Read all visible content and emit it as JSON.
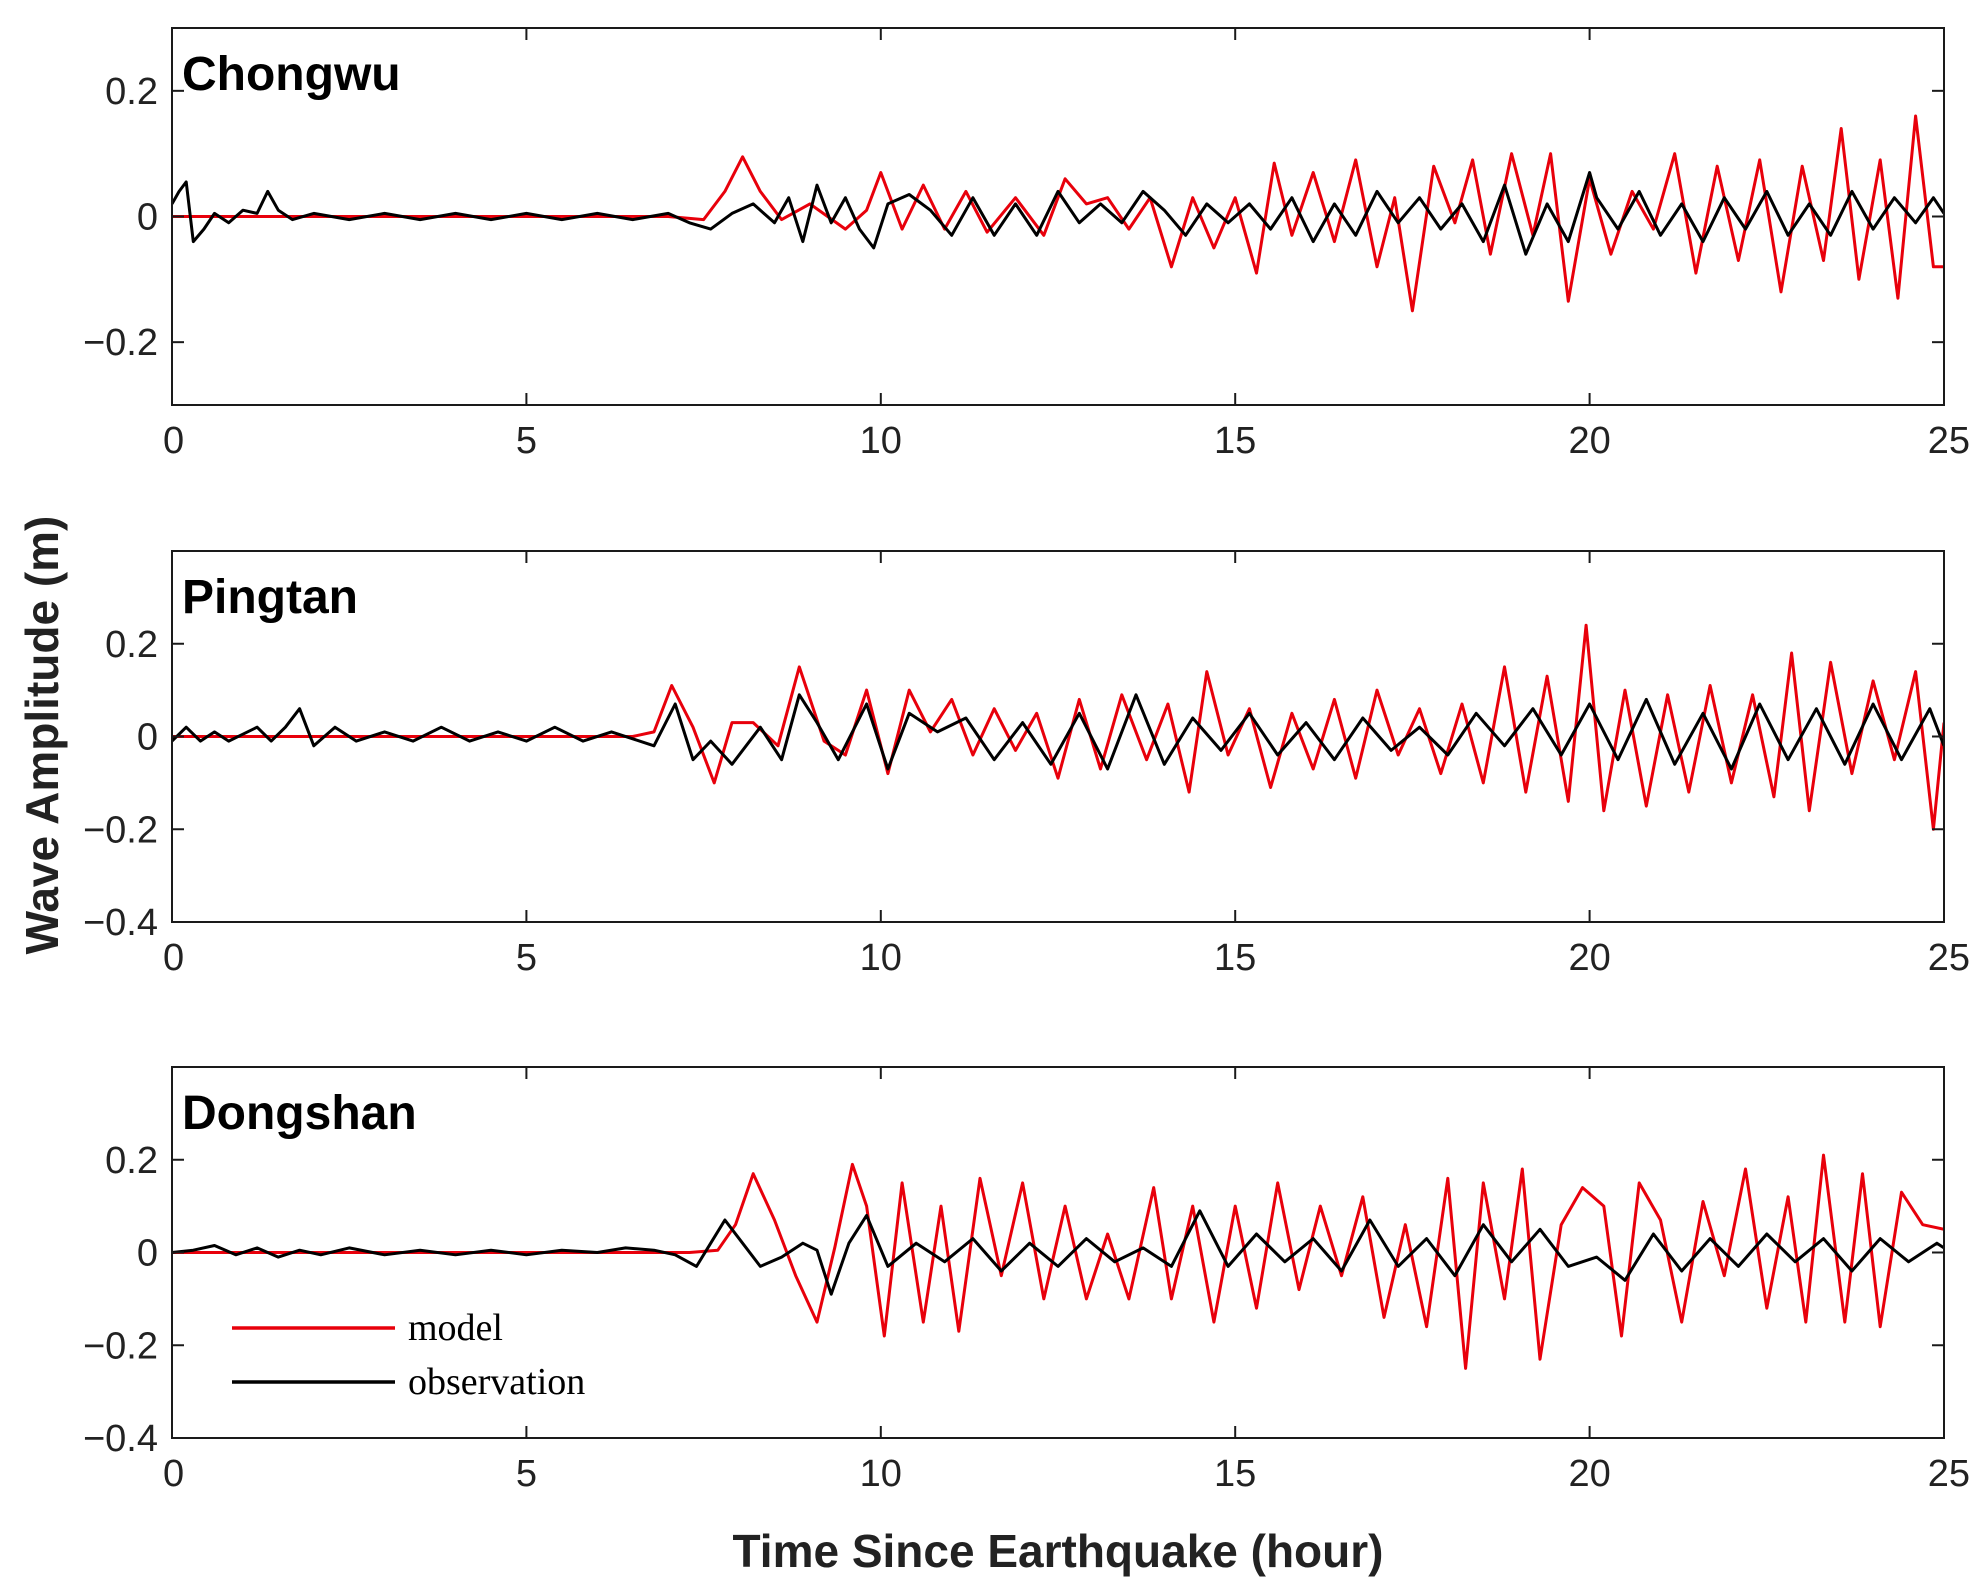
{
  "figure": {
    "xlabel": "Time Since Earthquake (hour)",
    "ylabel": "Wave Amplitude (m)",
    "legend": [
      {
        "label": "model",
        "color": "#e8000b"
      },
      {
        "label": "observation",
        "color": "#000000"
      }
    ]
  },
  "chart_data": [
    {
      "type": "line",
      "title": "Chongwu",
      "xlim": [
        0,
        25
      ],
      "ylim": [
        -0.3,
        0.3
      ],
      "xticks": [
        0,
        5,
        10,
        15,
        20,
        25
      ],
      "yticks": [
        -0.2,
        0,
        0.2
      ],
      "ytick_labels": [
        "−0.2",
        "0",
        "0.2"
      ],
      "series": [
        {
          "name": "model",
          "color": "#e8000b",
          "x": [
            0,
            7,
            7.5,
            7.8,
            8.05,
            8.3,
            8.6,
            9,
            9.5,
            9.8,
            10,
            10.3,
            10.6,
            10.9,
            11.2,
            11.5,
            11.9,
            12.3,
            12.6,
            12.9,
            13.2,
            13.5,
            13.8,
            14.1,
            14.4,
            14.7,
            15,
            15.3,
            15.55,
            15.8,
            16.1,
            16.4,
            16.7,
            17,
            17.25,
            17.5,
            17.8,
            18.1,
            18.35,
            18.6,
            18.9,
            19.2,
            19.45,
            19.7,
            20,
            20.3,
            20.6,
            20.9,
            21.2,
            21.5,
            21.8,
            22.1,
            22.4,
            22.7,
            23,
            23.3,
            23.55,
            23.8,
            24.1,
            24.35,
            24.6,
            24.85,
            25
          ],
          "y": [
            0,
            0,
            -0.005,
            0.04,
            0.095,
            0.04,
            -0.005,
            0.02,
            -0.02,
            0.01,
            0.07,
            -0.02,
            0.05,
            -0.02,
            0.04,
            -0.025,
            0.03,
            -0.03,
            0.06,
            0.02,
            0.03,
            -0.02,
            0.03,
            -0.08,
            0.03,
            -0.05,
            0.03,
            -0.09,
            0.085,
            -0.03,
            0.07,
            -0.04,
            0.09,
            -0.08,
            0.03,
            -0.15,
            0.08,
            -0.01,
            0.09,
            -0.06,
            0.1,
            -0.03,
            0.1,
            -0.135,
            0.06,
            -0.06,
            0.04,
            -0.02,
            0.1,
            -0.09,
            0.08,
            -0.07,
            0.09,
            -0.12,
            0.08,
            -0.07,
            0.14,
            -0.1,
            0.09,
            -0.13,
            0.16,
            -0.08,
            -0.08
          ]
        },
        {
          "name": "observation",
          "color": "#000000",
          "x": [
            0,
            0.1,
            0.2,
            0.3,
            0.45,
            0.6,
            0.8,
            1,
            1.2,
            1.35,
            1.5,
            1.7,
            2,
            2.5,
            3,
            3.5,
            4,
            4.5,
            5,
            5.5,
            6,
            6.5,
            7,
            7.3,
            7.6,
            7.9,
            8.2,
            8.5,
            8.7,
            8.9,
            9.1,
            9.3,
            9.5,
            9.7,
            9.9,
            10.1,
            10.4,
            10.7,
            11,
            11.3,
            11.6,
            11.9,
            12.2,
            12.5,
            12.8,
            13.1,
            13.4,
            13.7,
            14,
            14.3,
            14.6,
            14.9,
            15.2,
            15.5,
            15.8,
            16.1,
            16.4,
            16.7,
            17,
            17.3,
            17.6,
            17.9,
            18.2,
            18.5,
            18.8,
            19.1,
            19.4,
            19.7,
            20,
            20.1,
            20.4,
            20.7,
            21,
            21.3,
            21.6,
            21.9,
            22.2,
            22.5,
            22.8,
            23.1,
            23.4,
            23.7,
            24,
            24.3,
            24.6,
            24.85,
            25
          ],
          "y": [
            0.02,
            0.04,
            0.055,
            -0.04,
            -0.02,
            0.005,
            -0.01,
            0.01,
            0.005,
            0.04,
            0.01,
            -0.005,
            0.005,
            -0.005,
            0.005,
            -0.005,
            0.005,
            -0.005,
            0.005,
            -0.005,
            0.005,
            -0.005,
            0.005,
            -0.01,
            -0.02,
            0.005,
            0.02,
            -0.01,
            0.03,
            -0.04,
            0.05,
            -0.01,
            0.03,
            -0.02,
            -0.05,
            0.02,
            0.035,
            0.01,
            -0.03,
            0.03,
            -0.03,
            0.02,
            -0.03,
            0.04,
            -0.01,
            0.02,
            -0.01,
            0.04,
            0.01,
            -0.03,
            0.02,
            -0.01,
            0.02,
            -0.02,
            0.03,
            -0.04,
            0.02,
            -0.03,
            0.04,
            -0.01,
            0.03,
            -0.02,
            0.02,
            -0.04,
            0.05,
            -0.06,
            0.02,
            -0.04,
            0.07,
            0.03,
            -0.02,
            0.04,
            -0.03,
            0.02,
            -0.04,
            0.03,
            -0.02,
            0.04,
            -0.03,
            0.02,
            -0.03,
            0.04,
            -0.02,
            0.03,
            -0.01,
            0.03,
            0.005
          ]
        }
      ]
    },
    {
      "type": "line",
      "title": "Pingtan",
      "xlim": [
        0,
        25
      ],
      "ylim": [
        -0.4,
        0.4
      ],
      "xticks": [
        0,
        5,
        10,
        15,
        20,
        25
      ],
      "yticks": [
        -0.4,
        -0.2,
        0,
        0.2
      ],
      "ytick_labels": [
        "−0.4",
        "−0.2",
        "0",
        "0.2"
      ],
      "series": [
        {
          "name": "model",
          "color": "#e8000b",
          "x": [
            0,
            6.5,
            6.8,
            7.05,
            7.35,
            7.65,
            7.9,
            8.2,
            8.55,
            8.85,
            9.2,
            9.5,
            9.8,
            10.1,
            10.4,
            10.7,
            11,
            11.3,
            11.6,
            11.9,
            12.2,
            12.5,
            12.8,
            13.1,
            13.4,
            13.75,
            14.05,
            14.35,
            14.6,
            14.9,
            15.2,
            15.5,
            15.8,
            16.1,
            16.4,
            16.7,
            17,
            17.3,
            17.6,
            17.9,
            18.2,
            18.5,
            18.8,
            19.1,
            19.4,
            19.7,
            19.95,
            20.2,
            20.5,
            20.8,
            21.1,
            21.4,
            21.7,
            22,
            22.3,
            22.6,
            22.85,
            23.1,
            23.4,
            23.7,
            24,
            24.3,
            24.6,
            24.85,
            25
          ],
          "y": [
            0,
            0,
            0.01,
            0.11,
            0.02,
            -0.1,
            0.03,
            0.03,
            -0.02,
            0.15,
            -0.01,
            -0.04,
            0.1,
            -0.08,
            0.1,
            0.01,
            0.08,
            -0.04,
            0.06,
            -0.03,
            0.05,
            -0.09,
            0.08,
            -0.07,
            0.09,
            -0.05,
            0.07,
            -0.12,
            0.14,
            -0.04,
            0.06,
            -0.11,
            0.05,
            -0.07,
            0.08,
            -0.09,
            0.1,
            -0.04,
            0.06,
            -0.08,
            0.07,
            -0.1,
            0.15,
            -0.12,
            0.13,
            -0.14,
            0.24,
            -0.16,
            0.1,
            -0.15,
            0.09,
            -0.12,
            0.11,
            -0.1,
            0.09,
            -0.13,
            0.18,
            -0.16,
            0.16,
            -0.08,
            0.12,
            -0.05,
            0.14,
            -0.2,
            0.03
          ]
        },
        {
          "name": "observation",
          "color": "#000000",
          "x": [
            0,
            0.2,
            0.4,
            0.6,
            0.8,
            1,
            1.2,
            1.4,
            1.6,
            1.8,
            2,
            2.3,
            2.6,
            3,
            3.4,
            3.8,
            4.2,
            4.6,
            5,
            5.4,
            5.8,
            6.2,
            6.5,
            6.8,
            7.1,
            7.35,
            7.6,
            7.9,
            8.3,
            8.6,
            8.85,
            9.1,
            9.4,
            9.8,
            10.1,
            10.4,
            10.8,
            11.2,
            11.6,
            12,
            12.4,
            12.8,
            13.2,
            13.6,
            14,
            14.4,
            14.8,
            15.2,
            15.6,
            16,
            16.4,
            16.8,
            17.2,
            17.6,
            18,
            18.4,
            18.8,
            19.2,
            19.6,
            20,
            20.4,
            20.8,
            21.2,
            21.6,
            22,
            22.4,
            22.8,
            23.2,
            23.6,
            24,
            24.4,
            24.8,
            25
          ],
          "y": [
            -0.01,
            0.02,
            -0.01,
            0.01,
            -0.01,
            0.005,
            0.02,
            -0.01,
            0.02,
            0.06,
            -0.02,
            0.02,
            -0.01,
            0.01,
            -0.01,
            0.02,
            -0.01,
            0.01,
            -0.01,
            0.02,
            -0.01,
            0.01,
            -0.005,
            -0.02,
            0.07,
            -0.05,
            -0.01,
            -0.06,
            0.02,
            -0.05,
            0.09,
            0.03,
            -0.05,
            0.07,
            -0.07,
            0.05,
            0.01,
            0.04,
            -0.05,
            0.03,
            -0.06,
            0.05,
            -0.07,
            0.09,
            -0.06,
            0.04,
            -0.03,
            0.05,
            -0.04,
            0.03,
            -0.05,
            0.04,
            -0.03,
            0.02,
            -0.04,
            0.05,
            -0.02,
            0.06,
            -0.04,
            0.07,
            -0.05,
            0.08,
            -0.06,
            0.05,
            -0.07,
            0.07,
            -0.05,
            0.06,
            -0.06,
            0.07,
            -0.05,
            0.06,
            -0.02
          ]
        }
      ]
    },
    {
      "type": "line",
      "title": "Dongshan",
      "xlim": [
        0,
        25
      ],
      "ylim": [
        -0.4,
        0.4
      ],
      "xticks": [
        0,
        5,
        10,
        15,
        20,
        25
      ],
      "yticks": [
        -0.4,
        -0.2,
        0,
        0.2
      ],
      "ytick_labels": [
        "−0.4",
        "−0.2",
        "0",
        "0.2"
      ],
      "series": [
        {
          "name": "model",
          "color": "#e8000b",
          "x": [
            0,
            7.3,
            7.7,
            7.95,
            8.2,
            8.5,
            8.8,
            9.1,
            9.35,
            9.6,
            9.8,
            10.05,
            10.3,
            10.6,
            10.85,
            11.1,
            11.4,
            11.7,
            12,
            12.3,
            12.6,
            12.9,
            13.2,
            13.5,
            13.85,
            14.1,
            14.4,
            14.7,
            15,
            15.3,
            15.6,
            15.9,
            16.2,
            16.5,
            16.8,
            17.1,
            17.4,
            17.7,
            18,
            18.25,
            18.5,
            18.8,
            19.05,
            19.3,
            19.6,
            19.9,
            20.2,
            20.45,
            20.7,
            21,
            21.3,
            21.6,
            21.9,
            22.2,
            22.5,
            22.8,
            23.05,
            23.3,
            23.6,
            23.85,
            24.1,
            24.4,
            24.7,
            25
          ],
          "y": [
            0,
            0,
            0.005,
            0.06,
            0.17,
            0.07,
            -0.05,
            -0.15,
            0.01,
            0.19,
            0.1,
            -0.18,
            0.15,
            -0.15,
            0.1,
            -0.17,
            0.16,
            -0.05,
            0.15,
            -0.1,
            0.1,
            -0.1,
            0.04,
            -0.1,
            0.14,
            -0.1,
            0.1,
            -0.15,
            0.1,
            -0.12,
            0.15,
            -0.08,
            0.1,
            -0.05,
            0.12,
            -0.14,
            0.06,
            -0.16,
            0.16,
            -0.25,
            0.15,
            -0.1,
            0.18,
            -0.23,
            0.06,
            0.14,
            0.1,
            -0.18,
            0.15,
            0.07,
            -0.15,
            0.11,
            -0.05,
            0.18,
            -0.12,
            0.12,
            -0.15,
            0.21,
            -0.15,
            0.17,
            -0.16,
            0.13,
            0.06,
            0.05
          ]
        },
        {
          "name": "observation",
          "color": "#000000",
          "x": [
            0,
            0.3,
            0.6,
            0.9,
            1.2,
            1.5,
            1.8,
            2.1,
            2.5,
            3,
            3.5,
            4,
            4.5,
            5,
            5.5,
            6,
            6.4,
            6.8,
            7.1,
            7.4,
            7.6,
            7.8,
            8.05,
            8.3,
            8.6,
            8.9,
            9.1,
            9.3,
            9.55,
            9.8,
            10.1,
            10.5,
            10.9,
            11.3,
            11.7,
            12.1,
            12.5,
            12.9,
            13.3,
            13.7,
            14.1,
            14.5,
            14.9,
            15.3,
            15.7,
            16.1,
            16.5,
            16.9,
            17.3,
            17.7,
            18.1,
            18.5,
            18.9,
            19.3,
            19.7,
            20.1,
            20.5,
            20.9,
            21.3,
            21.7,
            22.1,
            22.5,
            22.9,
            23.3,
            23.7,
            24.1,
            24.5,
            24.9,
            25
          ],
          "y": [
            0,
            0.005,
            0.015,
            -0.005,
            0.01,
            -0.01,
            0.005,
            -0.005,
            0.01,
            -0.005,
            0.005,
            -0.005,
            0.005,
            -0.005,
            0.005,
            0,
            0.01,
            0.005,
            -0.005,
            -0.03,
            0.02,
            0.07,
            0.02,
            -0.03,
            -0.01,
            0.02,
            0.005,
            -0.09,
            0.02,
            0.08,
            -0.03,
            0.02,
            -0.02,
            0.03,
            -0.04,
            0.02,
            -0.03,
            0.03,
            -0.02,
            0.01,
            -0.03,
            0.09,
            -0.03,
            0.04,
            -0.02,
            0.03,
            -0.04,
            0.07,
            -0.03,
            0.03,
            -0.05,
            0.06,
            -0.02,
            0.05,
            -0.03,
            -0.01,
            -0.06,
            0.04,
            -0.04,
            0.03,
            -0.03,
            0.04,
            -0.02,
            0.03,
            -0.04,
            0.03,
            -0.02,
            0.02,
            0.01
          ]
        }
      ]
    }
  ]
}
